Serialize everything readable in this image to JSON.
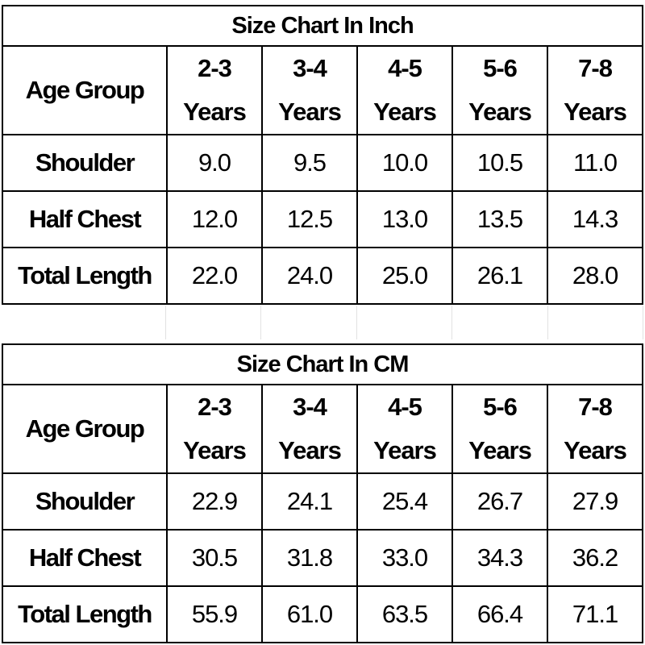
{
  "tables": [
    {
      "title": "Size Chart In Inch",
      "header_label": "Age Group",
      "age_groups": [
        {
          "range": "2-3",
          "unit": "Years"
        },
        {
          "range": "3-4",
          "unit": "Years"
        },
        {
          "range": "4-5",
          "unit": "Years"
        },
        {
          "range": "5-6",
          "unit": "Years"
        },
        {
          "range": "7-8",
          "unit": "Years"
        }
      ],
      "rows": [
        {
          "label": "Shoulder",
          "values": [
            "9.0",
            "9.5",
            "10.0",
            "10.5",
            "11.0"
          ]
        },
        {
          "label": "Half Chest",
          "values": [
            "12.0",
            "12.5",
            "13.0",
            "13.5",
            "14.3"
          ]
        },
        {
          "label": "Total Length",
          "values": [
            "22.0",
            "24.0",
            "25.0",
            "26.1",
            "28.0"
          ]
        }
      ]
    },
    {
      "title": "Size Chart In CM",
      "header_label": "Age Group",
      "age_groups": [
        {
          "range": "2-3",
          "unit": "Years"
        },
        {
          "range": "3-4",
          "unit": "Years"
        },
        {
          "range": "4-5",
          "unit": "Years"
        },
        {
          "range": "5-6",
          "unit": "Years"
        },
        {
          "range": "7-8",
          "unit": "Years"
        }
      ],
      "rows": [
        {
          "label": "Shoulder",
          "values": [
            "22.9",
            "24.1",
            "25.4",
            "26.7",
            "27.9"
          ]
        },
        {
          "label": "Half Chest",
          "values": [
            "30.5",
            "31.8",
            "33.0",
            "34.3",
            "36.2"
          ]
        },
        {
          "label": "Total Length",
          "values": [
            "55.9",
            "61.0",
            "63.5",
            "66.4",
            "71.1"
          ]
        }
      ]
    }
  ]
}
